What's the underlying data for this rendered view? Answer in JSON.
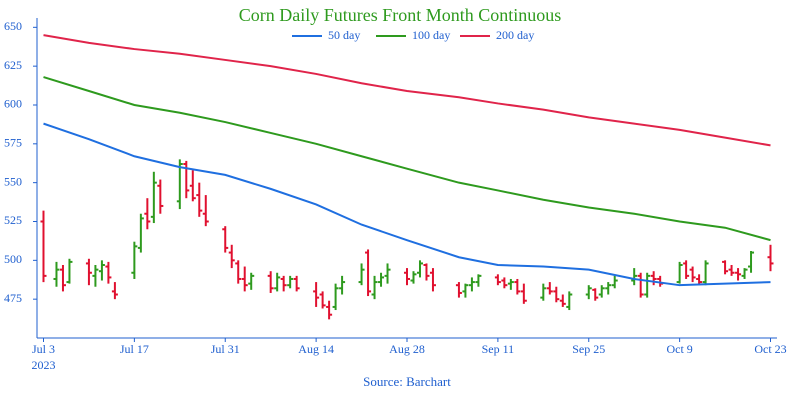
{
  "chart_data": {
    "type": "ohlc",
    "title": "Corn Daily Futures Front Month Continuous",
    "source": "Source: Barchart",
    "up_color": "#2e9a1e",
    "down_color": "#e0102f",
    "axis_color": "#1f5fcf",
    "title_color": "#2e9a1e",
    "legend": "top",
    "xlim": [
      "2023-07-02",
      "2023-10-24"
    ],
    "xticks": [
      {
        "value": "2023-07-03",
        "label": "Jul 3"
      },
      {
        "value": "2023-07-17",
        "label": "Jul 17"
      },
      {
        "value": "2023-07-31",
        "label": "Jul 31"
      },
      {
        "value": "2023-08-14",
        "label": "Aug 14"
      },
      {
        "value": "2023-08-28",
        "label": "Aug 28"
      },
      {
        "value": "2023-09-11",
        "label": "Sep 11"
      },
      {
        "value": "2023-09-25",
        "label": "Sep 25"
      },
      {
        "value": "2023-10-09",
        "label": "Oct 9"
      },
      {
        "value": "2023-10-23",
        "label": "Oct 23"
      }
    ],
    "x_year_label": "2023",
    "ylim": [
      450,
      656
    ],
    "yticks": [
      475,
      500,
      525,
      550,
      575,
      600,
      625,
      650
    ],
    "ohlc": {
      "x": [
        "2023-07-03",
        "2023-07-05",
        "2023-07-06",
        "2023-07-07",
        "2023-07-10",
        "2023-07-11",
        "2023-07-12",
        "2023-07-13",
        "2023-07-14",
        "2023-07-17",
        "2023-07-18",
        "2023-07-19",
        "2023-07-20",
        "2023-07-21",
        "2023-07-24",
        "2023-07-25",
        "2023-07-26",
        "2023-07-27",
        "2023-07-28",
        "2023-07-31",
        "2023-08-01",
        "2023-08-02",
        "2023-08-03",
        "2023-08-04",
        "2023-08-07",
        "2023-08-08",
        "2023-08-09",
        "2023-08-10",
        "2023-08-11",
        "2023-08-14",
        "2023-08-15",
        "2023-08-16",
        "2023-08-17",
        "2023-08-18",
        "2023-08-21",
        "2023-08-22",
        "2023-08-23",
        "2023-08-24",
        "2023-08-25",
        "2023-08-28",
        "2023-08-29",
        "2023-08-30",
        "2023-08-31",
        "2023-09-01",
        "2023-09-05",
        "2023-09-06",
        "2023-09-07",
        "2023-09-08",
        "2023-09-11",
        "2023-09-12",
        "2023-09-13",
        "2023-09-14",
        "2023-09-15",
        "2023-09-18",
        "2023-09-19",
        "2023-09-20",
        "2023-09-21",
        "2023-09-22",
        "2023-09-25",
        "2023-09-26",
        "2023-09-27",
        "2023-09-28",
        "2023-09-29",
        "2023-10-02",
        "2023-10-03",
        "2023-10-04",
        "2023-10-05",
        "2023-10-06",
        "2023-10-09",
        "2023-10-10",
        "2023-10-11",
        "2023-10-12",
        "2023-10-13",
        "2023-10-16",
        "2023-10-17",
        "2023-10-18",
        "2023-10-19",
        "2023-10-20",
        "2023-10-23"
      ],
      "open": [
        525,
        488,
        494,
        486,
        498,
        490,
        493,
        496,
        480,
        492,
        508,
        530,
        528,
        548,
        538,
        562,
        548,
        542,
        530,
        520,
        505,
        498,
        488,
        485,
        490,
        482,
        488,
        484,
        488,
        480,
        478,
        470,
        470,
        482,
        486,
        505,
        478,
        486,
        490,
        492,
        487,
        492,
        497,
        492,
        484,
        480,
        484,
        486,
        489,
        487,
        485,
        486,
        480,
        476,
        482,
        480,
        474,
        470,
        478,
        481,
        478,
        482,
        484,
        487,
        490,
        478,
        490,
        488,
        486,
        498,
        494,
        488,
        486,
        499,
        494,
        492,
        490,
        496,
        502
      ],
      "high": [
        532,
        499,
        497,
        501,
        501,
        497,
        500,
        499,
        486,
        512,
        530,
        540,
        557,
        552,
        565,
        564,
        558,
        550,
        542,
        522,
        510,
        500,
        496,
        492,
        493,
        492,
        490,
        490,
        490,
        486,
        480,
        474,
        485,
        490,
        498,
        507,
        490,
        492,
        498,
        495,
        493,
        500,
        498,
        495,
        486,
        485,
        489,
        491,
        491,
        489,
        488,
        488,
        485,
        485,
        486,
        483,
        478,
        480,
        484,
        482,
        484,
        486,
        490,
        495,
        492,
        492,
        493,
        490,
        499,
        500,
        496,
        491,
        500,
        500,
        497,
        495,
        495,
        506,
        510
      ],
      "low": [
        486,
        483,
        480,
        485,
        484,
        483,
        487,
        485,
        475,
        488,
        505,
        520,
        524,
        530,
        533,
        540,
        538,
        528,
        522,
        505,
        495,
        485,
        480,
        481,
        479,
        480,
        480,
        482,
        480,
        470,
        469,
        462,
        468,
        478,
        484,
        477,
        475,
        483,
        485,
        484,
        485,
        489,
        487,
        480,
        476,
        476,
        480,
        483,
        484,
        482,
        481,
        478,
        472,
        474,
        478,
        473,
        470,
        468,
        475,
        474,
        476,
        478,
        482,
        484,
        476,
        476,
        484,
        483,
        485,
        488,
        486,
        484,
        484,
        491,
        490,
        487,
        488,
        492,
        493
      ],
      "close": [
        490,
        494,
        484,
        499,
        492,
        494,
        497,
        489,
        478,
        509,
        527,
        525,
        550,
        535,
        562,
        545,
        540,
        532,
        525,
        508,
        500,
        488,
        484,
        490,
        482,
        489,
        484,
        488,
        482,
        476,
        471,
        465,
        482,
        486,
        494,
        480,
        486,
        489,
        494,
        488,
        491,
        498,
        490,
        484,
        479,
        484,
        486,
        490,
        486,
        484,
        486,
        480,
        474,
        482,
        480,
        475,
        472,
        478,
        482,
        476,
        482,
        484,
        487,
        490,
        478,
        490,
        488,
        485,
        497,
        490,
        489,
        486,
        498,
        493,
        492,
        491,
        494,
        505,
        498
      ]
    },
    "ma_x": [
      "2023-07-03",
      "2023-07-10",
      "2023-07-17",
      "2023-07-24",
      "2023-07-31",
      "2023-08-07",
      "2023-08-14",
      "2023-08-21",
      "2023-08-28",
      "2023-09-05",
      "2023-09-11",
      "2023-09-18",
      "2023-09-25",
      "2023-10-02",
      "2023-10-09",
      "2023-10-16",
      "2023-10-23"
    ],
    "series": [
      {
        "name": "50 day",
        "color": "#1f6fe0",
        "values": [
          588,
          578,
          567,
          560,
          555,
          546,
          536,
          523,
          513,
          502,
          497,
          496,
          494,
          488,
          484,
          485,
          486
        ]
      },
      {
        "name": "100 day",
        "color": "#2e9a1e",
        "values": [
          618,
          609,
          600,
          595,
          589,
          582,
          575,
          567,
          559,
          550,
          545,
          539,
          534,
          530,
          525,
          521,
          513
        ]
      },
      {
        "name": "200 day",
        "color": "#e0244a",
        "values": [
          645,
          640,
          636,
          633,
          629,
          625,
          620,
          614,
          609,
          605,
          601,
          597,
          592,
          588,
          584,
          579,
          574
        ]
      }
    ]
  }
}
